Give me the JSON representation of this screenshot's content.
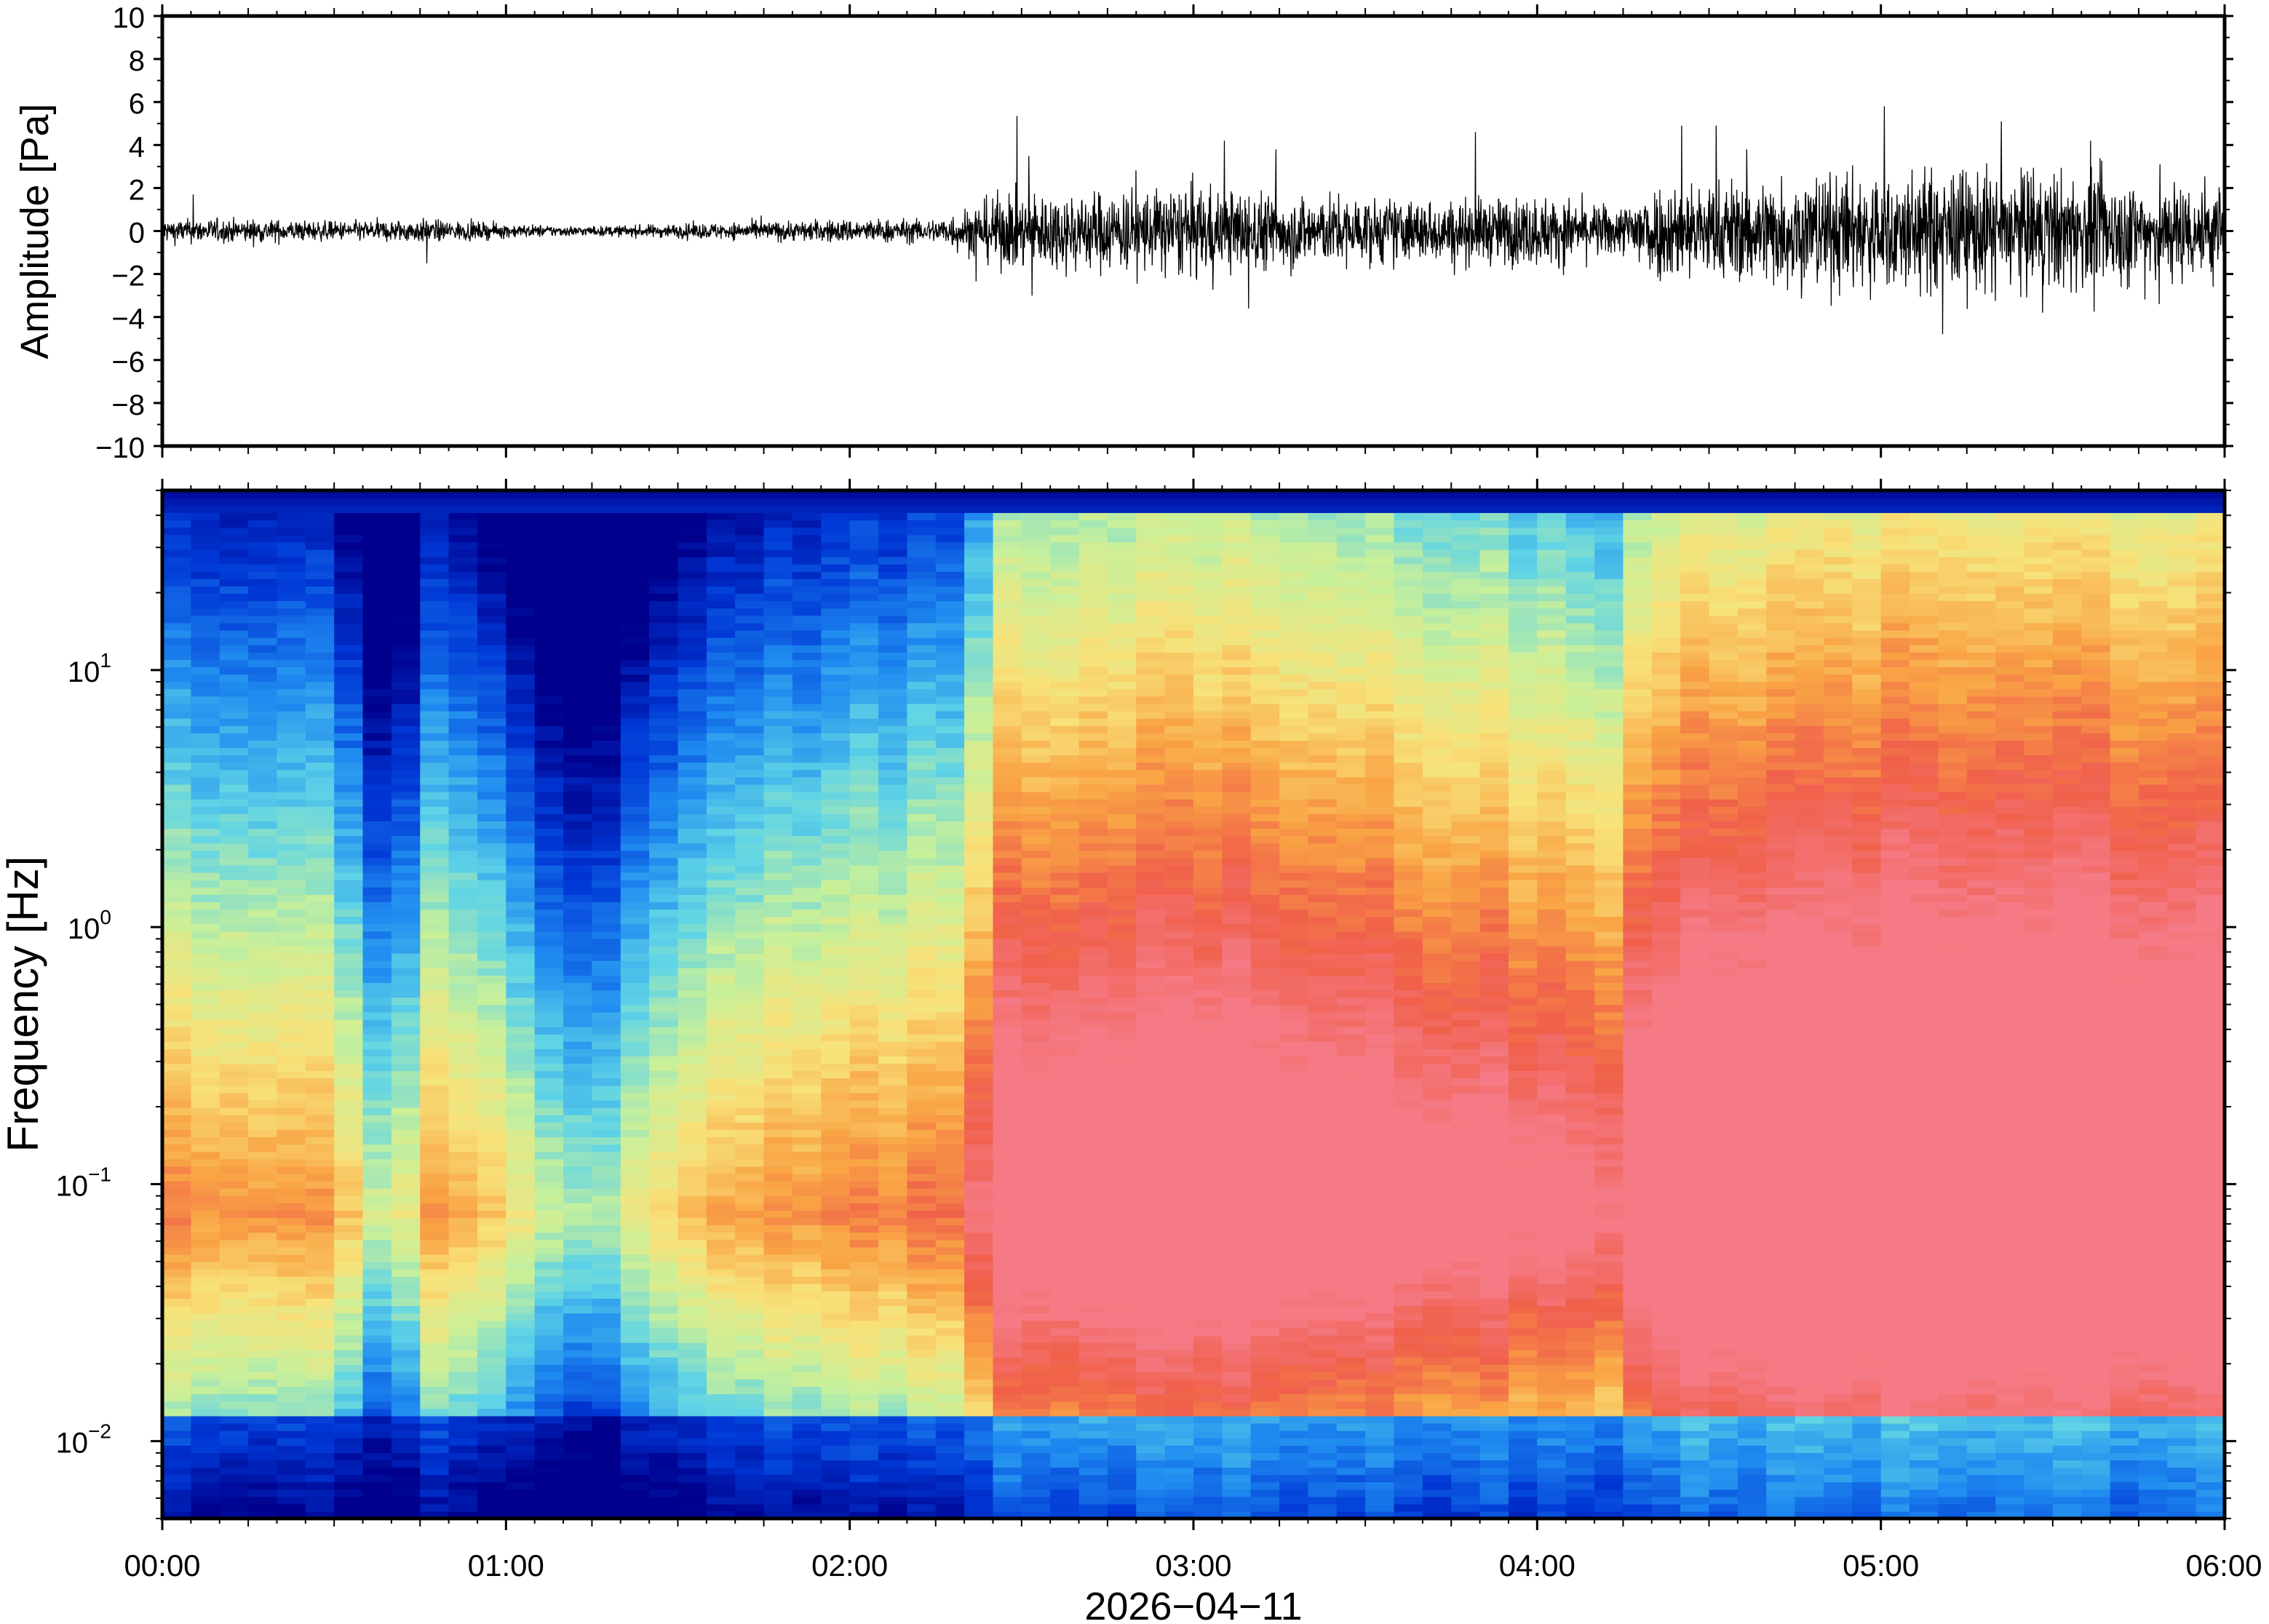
{
  "chart_data": [
    {
      "type": "line",
      "panel": "waveform",
      "xlabel": "",
      "ylabel": "Amplitude [Pa]",
      "xlim": [
        "2026-04-11T00:00",
        "2026-04-11T06:00"
      ],
      "ylim": [
        -10,
        10
      ],
      "yticks": [
        -10,
        -8,
        -6,
        -4,
        -2,
        0,
        2,
        4,
        6,
        8,
        10
      ],
      "ytick_labels": [
        "−10",
        "−8",
        "−6",
        "−4",
        "−2",
        "0",
        "2",
        "4",
        "6",
        "8",
        "10"
      ],
      "series": [
        {
          "color": "#000000",
          "envelope_time_hours": [
            0.0,
            0.25,
            0.5,
            0.75,
            1.0,
            1.25,
            1.5,
            1.75,
            2.0,
            2.25,
            2.45,
            2.75,
            3.0,
            3.25,
            3.5,
            3.75,
            4.0,
            4.25,
            4.3,
            4.5,
            4.75,
            5.0,
            5.25,
            5.5,
            5.75,
            6.0
          ],
          "envelope_amplitude_pa": [
            0.5,
            0.5,
            0.4,
            0.5,
            0.3,
            0.2,
            0.3,
            0.4,
            0.5,
            0.5,
            1.6,
            1.7,
            1.9,
            1.6,
            1.4,
            1.3,
            1.5,
            1.0,
            2.0,
            2.1,
            2.4,
            2.5,
            2.6,
            2.5,
            2.2,
            2.1
          ],
          "peaks": [
            {
              "t": 0.09,
              "a": 1.7
            },
            {
              "t": 0.77,
              "a": -1.5
            },
            {
              "t": 2.53,
              "a": -3.0
            },
            {
              "t": 3.09,
              "a": 4.2
            },
            {
              "t": 3.16,
              "a": -3.6
            },
            {
              "t": 3.24,
              "a": 3.8
            },
            {
              "t": 3.82,
              "a": 4.6
            },
            {
              "t": 4.42,
              "a": 4.9
            },
            {
              "t": 4.61,
              "a": 3.8
            },
            {
              "t": 4.97,
              "a": -3.2
            },
            {
              "t": 5.01,
              "a": 5.8
            },
            {
              "t": 5.18,
              "a": -4.8
            },
            {
              "t": 5.35,
              "a": 5.1
            },
            {
              "t": 5.47,
              "a": -3.8
            },
            {
              "t": 5.61,
              "a": 4.2
            },
            {
              "t": 5.81,
              "a": -3.4
            }
          ]
        }
      ]
    },
    {
      "type": "heatmap",
      "panel": "spectrogram",
      "xlabel": "2026−04−11",
      "ylabel": "Frequency [Hz]",
      "xlim": [
        "2026-04-11T00:00",
        "2026-04-11T06:00"
      ],
      "ylim_hz": [
        0.005,
        50
      ],
      "yscale": "log",
      "yticks_hz": [
        0.01,
        0.1,
        1,
        10
      ],
      "ytick_labels": [
        {
          "base": "10",
          "exp": "−2"
        },
        {
          "base": "10",
          "exp": "−1"
        },
        {
          "base": "10",
          "exp": "0"
        },
        {
          "base": "10",
          "exp": "1"
        }
      ],
      "xtick_labels": [
        "00:00",
        "01:00",
        "02:00",
        "03:00",
        "04:00",
        "05:00",
        "06:00"
      ],
      "colormap": [
        "#00008c",
        "#0038d6",
        "#1f8bf0",
        "#5fd4e6",
        "#c8f09a",
        "#f8e27a",
        "#f9a445",
        "#f0604a",
        "#f57a86"
      ],
      "intensity_profile": {
        "time_hours": [
          0.0,
          0.5,
          0.65,
          0.8,
          1.0,
          1.1,
          1.3,
          1.5,
          2.0,
          2.3,
          2.45,
          3.0,
          3.5,
          4.0,
          4.25,
          4.3,
          5.0,
          5.5,
          6.0
        ],
        "relative_level": [
          0.45,
          0.45,
          0.1,
          0.4,
          0.35,
          0.15,
          0.15,
          0.35,
          0.45,
          0.5,
          0.8,
          0.85,
          0.8,
          0.72,
          0.65,
          0.88,
          0.95,
          0.95,
          0.92
        ]
      }
    }
  ]
}
